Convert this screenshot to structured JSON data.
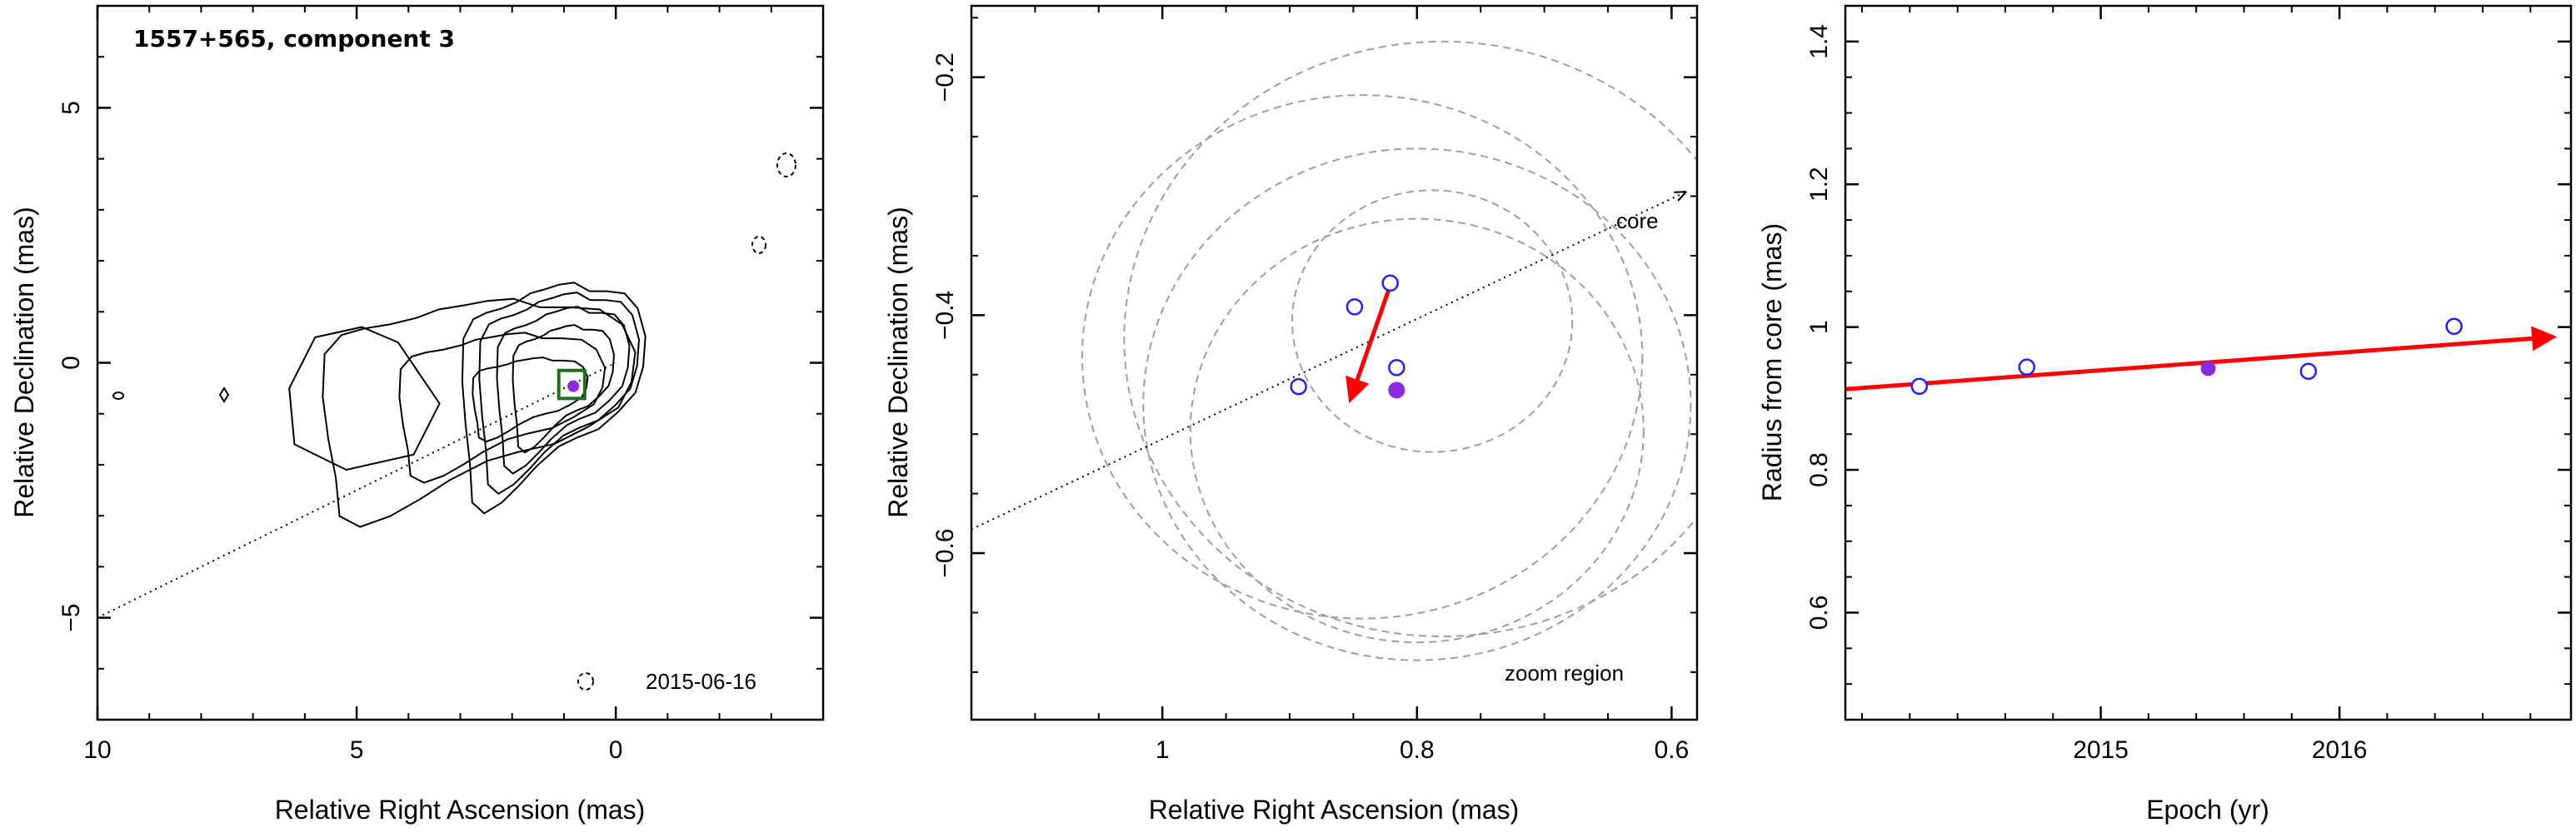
{
  "chart_data": [
    {
      "type": "contour",
      "title": "1557+565, component 3",
      "date": "2015-06-16",
      "xlabel": "Relative Right Ascension (mas)",
      "ylabel": "Relative Declination (mas)",
      "xlim": [
        10,
        -4
      ],
      "ylim": [
        -7,
        7
      ],
      "xticks": [
        10,
        5,
        0
      ],
      "yticks": [
        -5,
        0,
        5
      ],
      "xtick_labels": [
        "10",
        "5",
        "0"
      ],
      "ytick_labels": [
        "−5",
        "0",
        "5"
      ],
      "component_position": [
        0.82,
        -0.46
      ],
      "zoom_box": {
        "x": [
          0.6,
          1.1
        ],
        "y": [
          -0.7,
          -0.15
        ]
      },
      "jet_direction_line": {
        "from": [
          10,
          -5.0
        ],
        "to": [
          0,
          0
        ]
      },
      "contours": [
        {
          "scale": 0.14
        },
        {
          "scale": 0.25
        },
        {
          "scale": 0.38
        },
        {
          "scale": 0.52
        },
        {
          "scale": 0.68
        },
        {
          "scale": 0.82
        },
        {
          "scale": 0.94
        }
      ]
    },
    {
      "type": "scatter",
      "xlabel": "Relative Right Ascension (mas)",
      "ylabel": "Relative Declination (mas)",
      "xlim": [
        1.15,
        0.58
      ],
      "ylim": [
        -0.74,
        -0.14
      ],
      "xticks": [
        1,
        0.8,
        0.6
      ],
      "yticks": [
        -0.6,
        -0.4,
        -0.2
      ],
      "xtick_labels": [
        "1",
        "0.8",
        "0.6"
      ],
      "ytick_labels": [
        "−0.6",
        "−0.4",
        "−0.2"
      ],
      "points_open": [
        {
          "x": 0.821,
          "y": -0.373
        },
        {
          "x": 0.849,
          "y": -0.393
        },
        {
          "x": 0.816,
          "y": -0.444
        },
        {
          "x": 0.893,
          "y": -0.46
        }
      ],
      "points_filled": [
        {
          "x": 0.816,
          "y": -0.463
        }
      ],
      "circles": [
        {
          "cx": 0.843,
          "cy": -0.435,
          "r": 0.22
        },
        {
          "cx": 0.78,
          "cy": -0.42,
          "r": 0.25
        },
        {
          "cx": 0.8,
          "cy": -0.475,
          "r": 0.215
        },
        {
          "cx": 0.8,
          "cy": -0.497,
          "r": 0.178
        },
        {
          "cx": 0.788,
          "cy": -0.405,
          "r": 0.11
        }
      ],
      "velocity_vector": {
        "from": [
          0.821,
          -0.375
        ],
        "to": [
          0.852,
          -0.47
        ]
      },
      "core_line": {
        "from": [
          1.15,
          -0.58
        ],
        "to": [
          0.59,
          -0.297
        ]
      },
      "core_label": "core",
      "zoom_label": "zoom region"
    },
    {
      "type": "scatter",
      "xlabel": "Epoch (yr)",
      "ylabel": "Radius from core (mas)",
      "xlim": [
        2013.93,
        2016.97
      ],
      "ylim": [
        0.45,
        1.45
      ],
      "xticks": [
        2015,
        2016
      ],
      "yticks": [
        0.6,
        0.8,
        1.0,
        1.2,
        1.4
      ],
      "xtick_labels": [
        "2015",
        "2016"
      ],
      "ytick_labels": [
        "0.6",
        "0.8",
        "1",
        "1.2",
        "1.4"
      ],
      "points_open": [
        {
          "x": 2014.24,
          "y": 0.917
        },
        {
          "x": 2014.69,
          "y": 0.944
        },
        {
          "x": 2015.87,
          "y": 0.938
        },
        {
          "x": 2016.48,
          "y": 1.001
        }
      ],
      "points_filled": [
        {
          "x": 2015.45,
          "y": 0.942
        }
      ],
      "fit_line": {
        "from": [
          2013.93,
          0.913
        ],
        "to": [
          2016.89,
          0.986
        ]
      }
    }
  ],
  "colors": {
    "open_marker": "#1f1fff",
    "filled_marker": "#8a2be2",
    "arrow": "#ff0000",
    "dashed_circle": "#9e9e9e",
    "box": "#1e6e1e"
  }
}
